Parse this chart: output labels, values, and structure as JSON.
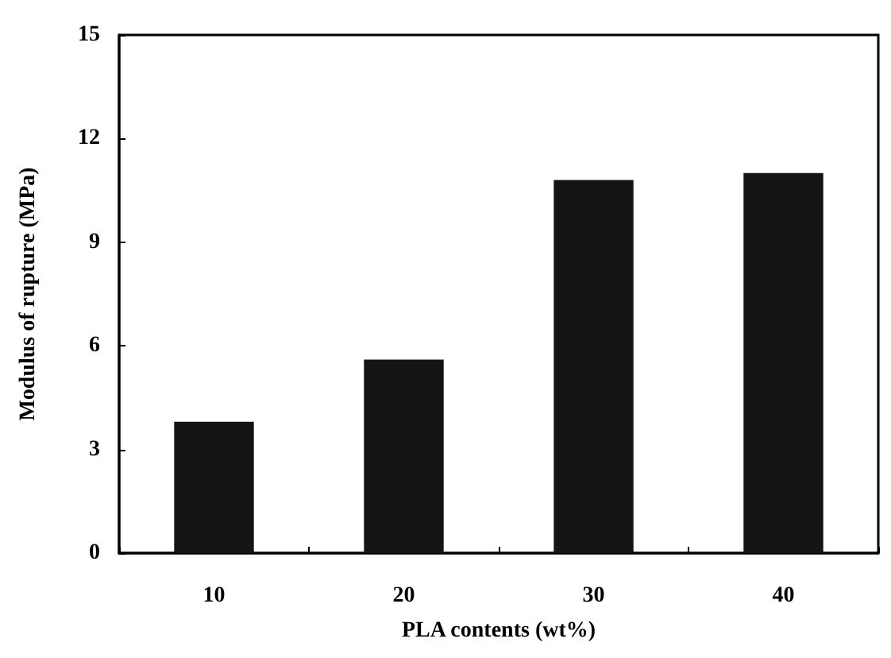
{
  "chart_data": {
    "type": "bar",
    "xlabel": "PLA contents (wt%)",
    "ylabel": "Modulus of rupture (MPa)",
    "categories": [
      "10",
      "20",
      "30",
      "40"
    ],
    "values": [
      3.8,
      5.6,
      10.8,
      11.0
    ],
    "color": "#141414",
    "ylim": [
      0,
      15
    ],
    "yticks": [
      0,
      3,
      6,
      9,
      12,
      15
    ],
    "grid": false
  }
}
